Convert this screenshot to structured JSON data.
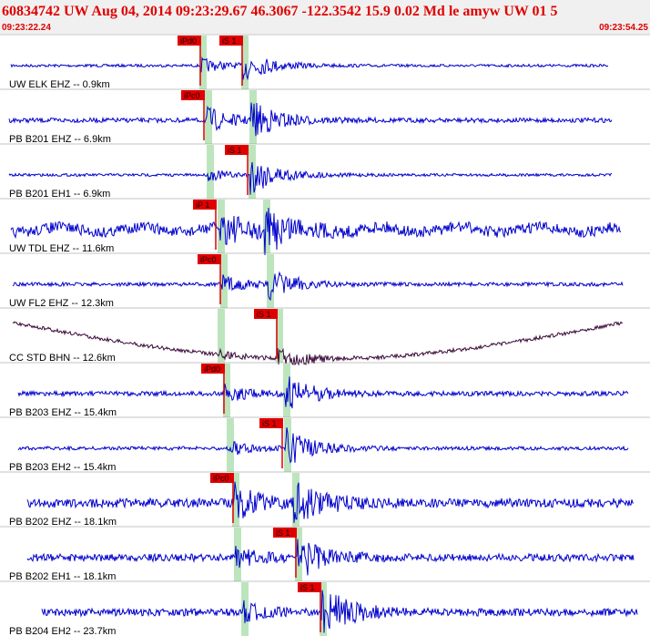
{
  "header": {
    "event": "60834742 UW Aug 04, 2014 09:23:29.67   46.3067 -122.3542 15.9 0.02 Md le amyw UW 01   5",
    "start_time": "09:23:22.24",
    "end_time": "09:23:54.25"
  },
  "traces": [
    {
      "label": "UW ELK EHZ -- 0.9km",
      "picks": [
        "iPd0",
        "iS 1"
      ]
    },
    {
      "label": "PB B201 EHZ -- 6.9km",
      "picks": [
        "iPc0"
      ]
    },
    {
      "label": "PB B201 EH1 -- 6.9km",
      "picks": [
        "iS 1"
      ]
    },
    {
      "label": "UW TDL EHZ -- 11.6km",
      "picks": [
        "iP 1"
      ]
    },
    {
      "label": "UW FL2 EHZ -- 12.3km",
      "picks": [
        "iPc0"
      ]
    },
    {
      "label": "CC STD BHN -- 12.6km",
      "picks": [
        "iS 1"
      ]
    },
    {
      "label": "PB B203 EHZ -- 15.4km",
      "picks": [
        "iPd0"
      ]
    },
    {
      "label": "PB B203 EH2 -- 15.4km",
      "picks": [
        "iS 1"
      ]
    },
    {
      "label": "PB B202 EHZ -- 18.1km",
      "picks": [
        "iPc0"
      ]
    },
    {
      "label": "PB B202 EH1 -- 18.1km",
      "picks": [
        "iS 1"
      ]
    },
    {
      "label": "PB B204 EH2 -- 23.7km",
      "picks": [
        "iS 1"
      ]
    }
  ]
}
